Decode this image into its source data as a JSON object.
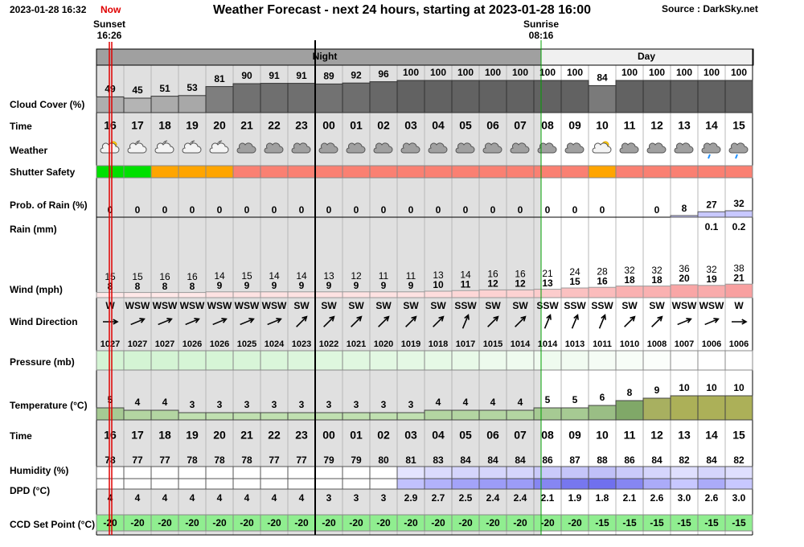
{
  "header": {
    "timestamp": "2023-01-28 16:32",
    "now": "Now",
    "title": "Weather Forecast - next 24 hours, starting at 2023-01-28 16:00",
    "source": "Source : DarkSky.net",
    "sunset": "Sunset",
    "sunset_time": "16:26",
    "sunrise": "Sunrise",
    "sunrise_time": "08:16",
    "night": "Night",
    "day": "Day"
  },
  "rows": {
    "cloud_cover": {
      "label": "Cloud Cover (%)",
      "values": [
        49,
        45,
        51,
        53,
        81,
        90,
        91,
        91,
        89,
        92,
        96,
        100,
        100,
        100,
        100,
        100,
        100,
        100,
        84,
        100,
        100,
        100,
        100,
        100
      ]
    },
    "time": {
      "label": "Time",
      "values": [
        "16",
        "17",
        "18",
        "19",
        "20",
        "21",
        "22",
        "23",
        "00",
        "01",
        "02",
        "03",
        "04",
        "05",
        "06",
        "07",
        "08",
        "09",
        "10",
        "11",
        "12",
        "13",
        "14",
        "15"
      ]
    },
    "weather": {
      "label": "Weather"
    },
    "shutter_safety": {
      "label": "Shutter Safety",
      "colors": [
        "#00e000",
        "#00e000",
        "#ffa500",
        "#ffa500",
        "#ffa500",
        "#fa8072",
        "#fa8072",
        "#fa8072",
        "#fa8072",
        "#fa8072",
        "#fa8072",
        "#fa8072",
        "#fa8072",
        "#fa8072",
        "#fa8072",
        "#fa8072",
        "#fa8072",
        "#fa8072",
        "#ffa500",
        "#fa8072",
        "#fa8072",
        "#fa8072",
        "#fa8072",
        "#fa8072"
      ]
    },
    "prob_rain": {
      "label": "Prob. of Rain (%)",
      "values": [
        0,
        0,
        0,
        0,
        0,
        0,
        0,
        0,
        0,
        0,
        0,
        0,
        0,
        0,
        0,
        0,
        0,
        0,
        0,
        null,
        0,
        8,
        27,
        32
      ]
    },
    "rain": {
      "label": "Rain (mm)",
      "values": [
        null,
        null,
        null,
        null,
        null,
        null,
        null,
        null,
        null,
        null,
        null,
        null,
        null,
        null,
        null,
        null,
        null,
        null,
        null,
        null,
        null,
        null,
        "0.1",
        "0.2"
      ]
    },
    "wind": {
      "label": "Wind (mph)",
      "gusts": [
        15,
        15,
        16,
        16,
        14,
        15,
        14,
        14,
        13,
        12,
        11,
        11,
        13,
        14,
        16,
        16,
        21,
        24,
        28,
        32,
        32,
        36,
        32,
        38
      ],
      "speeds": [
        8,
        8,
        8,
        8,
        9,
        9,
        9,
        9,
        9,
        9,
        9,
        9,
        10,
        11,
        12,
        12,
        13,
        15,
        16,
        18,
        18,
        20,
        19,
        21
      ]
    },
    "wind_direction": {
      "label": "Wind Direction",
      "values": [
        "W",
        "WSW",
        "WSW",
        "WSW",
        "WSW",
        "WSW",
        "WSW",
        "SW",
        "SW",
        "SW",
        "SW",
        "SW",
        "SW",
        "SSW",
        "SW",
        "SW",
        "SSW",
        "SSW",
        "SSW",
        "SW",
        "SW",
        "WSW",
        "WSW",
        "W"
      ]
    },
    "pressure": {
      "label": "Pressure (mb)",
      "values": [
        1027,
        1027,
        1027,
        1026,
        1026,
        1025,
        1024,
        1023,
        1022,
        1021,
        1020,
        1019,
        1018,
        1017,
        1015,
        1014,
        1014,
        1013,
        1011,
        1010,
        1008,
        1007,
        1006,
        1006
      ]
    },
    "temperature": {
      "label": "Temperature (°C)",
      "values": [
        5,
        4,
        4,
        3,
        3,
        3,
        3,
        3,
        3,
        3,
        3,
        3,
        4,
        4,
        4,
        4,
        5,
        5,
        6,
        8,
        9,
        10,
        10,
        10
      ]
    },
    "humidity": {
      "label": "Humidity (%)",
      "values": [
        78,
        77,
        77,
        78,
        78,
        78,
        77,
        77,
        79,
        79,
        80,
        81,
        83,
        84,
        84,
        84,
        86,
        87,
        88,
        86,
        84,
        82,
        84,
        82
      ]
    },
    "dpd": {
      "label": "DPD (°C)",
      "values": [
        "4",
        "4",
        "4",
        "4",
        "4",
        "4",
        "4",
        "4",
        "3",
        "3",
        "3",
        "2.9",
        "2.7",
        "2.5",
        "2.4",
        "2.4",
        "2.1",
        "1.9",
        "1.8",
        "2.1",
        "2.6",
        "3.0",
        "2.6",
        "3.0"
      ]
    },
    "ccd_set_point": {
      "label": "CCD Set Point (°C)",
      "values": [
        -20,
        -20,
        -20,
        -20,
        -20,
        -20,
        -20,
        -20,
        -20,
        -20,
        -20,
        -20,
        -20,
        -20,
        -20,
        -20,
        -20,
        -20,
        -15,
        -15,
        -15,
        -15,
        -15,
        -15
      ]
    }
  }
}
